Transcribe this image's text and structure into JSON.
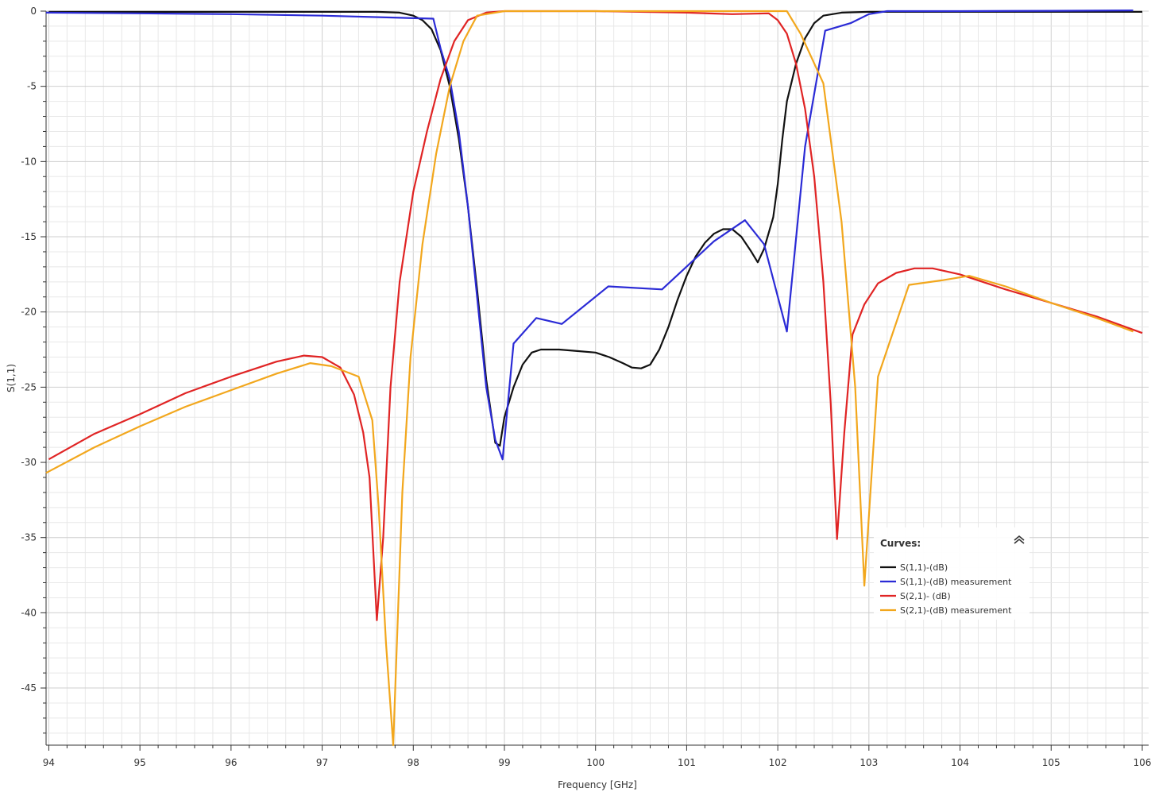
{
  "chart_data": {
    "type": "line",
    "title": "",
    "xlabel": "Frequency [GHz]",
    "ylabel": "S(1,1)",
    "xlim": [
      93.97,
      106.07
    ],
    "ylim": [
      -48.8,
      0
    ],
    "x_ticks": [
      94,
      95,
      96,
      97,
      98,
      99,
      100,
      101,
      102,
      103,
      104,
      105,
      106
    ],
    "y_ticks": [
      0,
      -5,
      -10,
      -15,
      -20,
      -25,
      -30,
      -35,
      -40,
      -45
    ],
    "grid": true,
    "legend": {
      "title": "Curves:",
      "placement": "bottom-right",
      "collapse_icon": "double-chevron-up-icon"
    },
    "series": [
      {
        "name": "S(1,1)-(dB)",
        "color": "#111111",
        "points": [
          [
            94.0,
            -0.05
          ],
          [
            95,
            -0.05
          ],
          [
            96,
            -0.05
          ],
          [
            97,
            -0.05
          ],
          [
            97.6,
            -0.05
          ],
          [
            97.85,
            -0.1
          ],
          [
            98.0,
            -0.3
          ],
          [
            98.1,
            -0.6
          ],
          [
            98.2,
            -1.2
          ],
          [
            98.3,
            -2.6
          ],
          [
            98.4,
            -5.0
          ],
          [
            98.5,
            -8.5
          ],
          [
            98.6,
            -13.0
          ],
          [
            98.7,
            -18.5
          ],
          [
            98.8,
            -24.5
          ],
          [
            98.9,
            -28.7
          ],
          [
            98.95,
            -28.9
          ],
          [
            99.0,
            -27.0
          ],
          [
            99.1,
            -25.0
          ],
          [
            99.2,
            -23.5
          ],
          [
            99.3,
            -22.7
          ],
          [
            99.4,
            -22.5
          ],
          [
            99.6,
            -22.5
          ],
          [
            99.8,
            -22.6
          ],
          [
            100.0,
            -22.7
          ],
          [
            100.15,
            -23.0
          ],
          [
            100.3,
            -23.4
          ],
          [
            100.4,
            -23.7
          ],
          [
            100.5,
            -23.75
          ],
          [
            100.6,
            -23.5
          ],
          [
            100.7,
            -22.5
          ],
          [
            100.8,
            -21.0
          ],
          [
            100.9,
            -19.2
          ],
          [
            101.0,
            -17.6
          ],
          [
            101.1,
            -16.3
          ],
          [
            101.2,
            -15.4
          ],
          [
            101.3,
            -14.8
          ],
          [
            101.4,
            -14.5
          ],
          [
            101.5,
            -14.5
          ],
          [
            101.6,
            -15.0
          ],
          [
            101.7,
            -15.9
          ],
          [
            101.78,
            -16.7
          ],
          [
            101.85,
            -15.8
          ],
          [
            101.95,
            -13.7
          ],
          [
            102.0,
            -11.5
          ],
          [
            102.05,
            -8.5
          ],
          [
            102.1,
            -6.0
          ],
          [
            102.2,
            -3.5
          ],
          [
            102.3,
            -1.8
          ],
          [
            102.4,
            -0.8
          ],
          [
            102.5,
            -0.3
          ],
          [
            102.7,
            -0.1
          ],
          [
            103.0,
            -0.05
          ],
          [
            104,
            -0.05
          ],
          [
            105,
            -0.05
          ],
          [
            106.0,
            -0.05
          ]
        ]
      },
      {
        "name": "S(1,1)-(dB) measurement",
        "color": "#2b2bd6",
        "points": [
          [
            93.97,
            -0.1
          ],
          [
            95,
            -0.15
          ],
          [
            96,
            -0.2
          ],
          [
            97,
            -0.3
          ],
          [
            98.22,
            -0.5
          ],
          [
            98.3,
            -2.5
          ],
          [
            98.4,
            -4.5
          ],
          [
            98.5,
            -8.0
          ],
          [
            98.6,
            -13.0
          ],
          [
            98.7,
            -19.0
          ],
          [
            98.8,
            -25.0
          ],
          [
            98.9,
            -28.5
          ],
          [
            98.98,
            -29.8
          ],
          [
            99.1,
            -22.1
          ],
          [
            99.35,
            -20.4
          ],
          [
            99.63,
            -20.8
          ],
          [
            100.14,
            -18.3
          ],
          [
            100.73,
            -18.5
          ],
          [
            101.3,
            -15.3
          ],
          [
            101.64,
            -13.9
          ],
          [
            101.85,
            -15.5
          ],
          [
            102.1,
            -21.3
          ],
          [
            102.3,
            -9.0
          ],
          [
            102.52,
            -1.3
          ],
          [
            102.8,
            -0.8
          ],
          [
            103.0,
            -0.2
          ],
          [
            103.2,
            0.0
          ],
          [
            104,
            0.0
          ],
          [
            105,
            0.02
          ],
          [
            105.9,
            0.05
          ]
        ]
      },
      {
        "name": "S(2,1)- (dB)",
        "color": "#e02424",
        "points": [
          [
            94.0,
            -29.8
          ],
          [
            94.5,
            -28.1
          ],
          [
            95.0,
            -26.8
          ],
          [
            95.5,
            -25.4
          ],
          [
            96.0,
            -24.3
          ],
          [
            96.5,
            -23.3
          ],
          [
            96.8,
            -22.9
          ],
          [
            97.0,
            -23.0
          ],
          [
            97.2,
            -23.7
          ],
          [
            97.35,
            -25.5
          ],
          [
            97.45,
            -28.0
          ],
          [
            97.52,
            -31.0
          ],
          [
            97.6,
            -40.5
          ],
          [
            97.67,
            -35.0
          ],
          [
            97.75,
            -25.0
          ],
          [
            97.85,
            -18.0
          ],
          [
            98.0,
            -12.0
          ],
          [
            98.15,
            -8.0
          ],
          [
            98.3,
            -4.5
          ],
          [
            98.45,
            -2.0
          ],
          [
            98.6,
            -0.6
          ],
          [
            98.8,
            -0.1
          ],
          [
            99.0,
            0.0
          ],
          [
            100,
            0.0
          ],
          [
            101,
            -0.1
          ],
          [
            101.5,
            -0.2
          ],
          [
            101.9,
            -0.15
          ],
          [
            102.0,
            -0.6
          ],
          [
            102.1,
            -1.5
          ],
          [
            102.2,
            -3.5
          ],
          [
            102.3,
            -6.5
          ],
          [
            102.4,
            -11.0
          ],
          [
            102.5,
            -18.0
          ],
          [
            102.58,
            -26.0
          ],
          [
            102.65,
            -35.1
          ],
          [
            102.73,
            -28.0
          ],
          [
            102.82,
            -21.5
          ],
          [
            102.95,
            -19.5
          ],
          [
            103.1,
            -18.1
          ],
          [
            103.3,
            -17.4
          ],
          [
            103.5,
            -17.1
          ],
          [
            103.7,
            -17.1
          ],
          [
            104.0,
            -17.5
          ],
          [
            104.5,
            -18.5
          ],
          [
            105.0,
            -19.4
          ],
          [
            105.5,
            -20.3
          ],
          [
            106.0,
            -21.4
          ]
        ]
      },
      {
        "name": "S(2,1)-(dB) measurement",
        "color": "#f2a71d",
        "points": [
          [
            93.97,
            -30.7
          ],
          [
            94.5,
            -29.0
          ],
          [
            95.0,
            -27.6
          ],
          [
            95.5,
            -26.3
          ],
          [
            96.0,
            -25.2
          ],
          [
            96.5,
            -24.1
          ],
          [
            96.87,
            -23.4
          ],
          [
            97.1,
            -23.6
          ],
          [
            97.4,
            -24.3
          ],
          [
            97.55,
            -27.2
          ],
          [
            97.62,
            -33.0
          ],
          [
            97.7,
            -42.0
          ],
          [
            97.78,
            -48.8
          ],
          [
            97.88,
            -32.0
          ],
          [
            97.97,
            -23.0
          ],
          [
            98.1,
            -15.5
          ],
          [
            98.25,
            -9.5
          ],
          [
            98.4,
            -5.0
          ],
          [
            98.55,
            -2.0
          ],
          [
            98.7,
            -0.3
          ],
          [
            99.0,
            0.0
          ],
          [
            100,
            0.0
          ],
          [
            101,
            0.0
          ],
          [
            102.0,
            0.0
          ],
          [
            102.1,
            0.0
          ],
          [
            102.25,
            -1.5
          ],
          [
            102.5,
            -4.8
          ],
          [
            102.7,
            -14.0
          ],
          [
            102.85,
            -25.0
          ],
          [
            102.95,
            -38.2
          ],
          [
            103.1,
            -24.3
          ],
          [
            103.44,
            -18.2
          ],
          [
            103.8,
            -17.9
          ],
          [
            104.1,
            -17.6
          ],
          [
            104.5,
            -18.3
          ],
          [
            105.0,
            -19.4
          ],
          [
            105.5,
            -20.4
          ],
          [
            105.9,
            -21.3
          ]
        ]
      }
    ]
  }
}
